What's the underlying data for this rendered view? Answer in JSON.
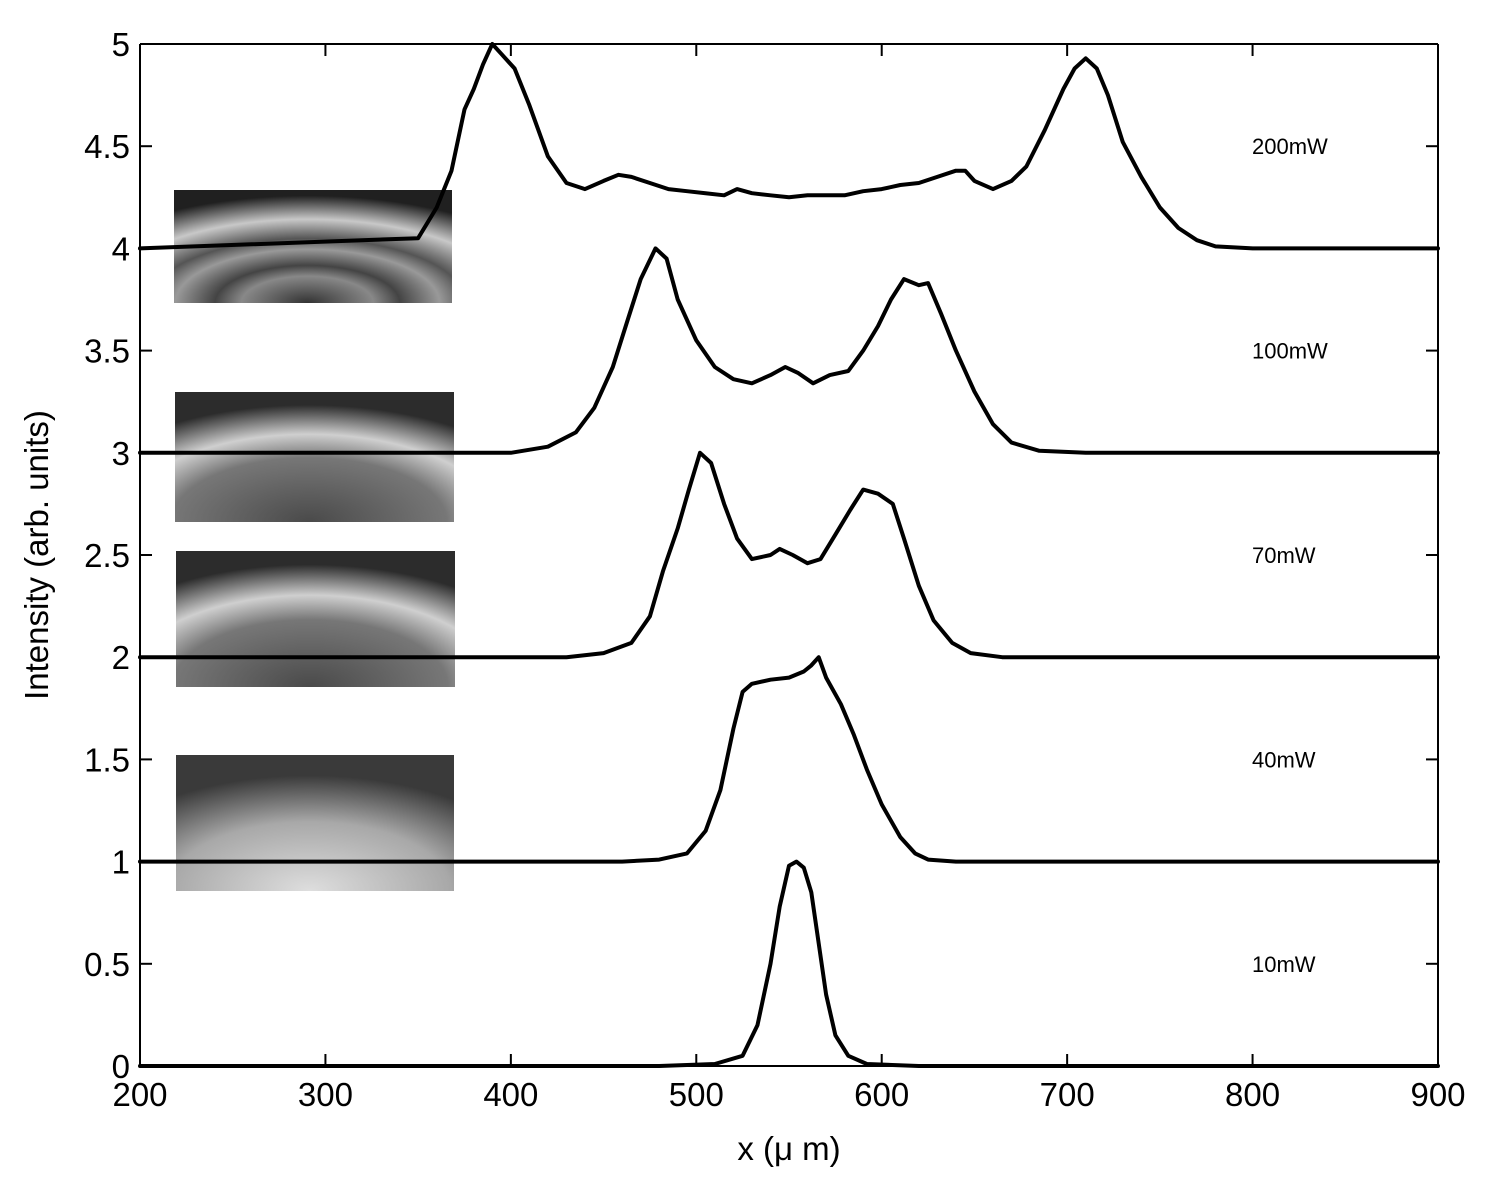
{
  "chart_data": {
    "type": "line",
    "title": "",
    "xlabel": "x (μ m)",
    "ylabel": "Intensity (arb. units)",
    "xlim": [
      200,
      900
    ],
    "ylim": [
      0,
      5
    ],
    "xticks": [
      200,
      300,
      400,
      500,
      600,
      700,
      800,
      900
    ],
    "yticks": [
      0,
      0.5,
      1,
      1.5,
      2,
      2.5,
      3,
      3.5,
      4,
      4.5,
      5
    ],
    "ytick_labels": [
      "0",
      "0.5",
      "1",
      "1.5",
      "2",
      "2.5",
      "3",
      "3.5",
      "4",
      "4.5",
      "5"
    ],
    "grid": false,
    "line_color": "#000000",
    "series": [
      {
        "name": "10mW",
        "points": [
          [
            200,
            0
          ],
          [
            480,
            0
          ],
          [
            510,
            0.01
          ],
          [
            525,
            0.05
          ],
          [
            533,
            0.2
          ],
          [
            540,
            0.5
          ],
          [
            545,
            0.78
          ],
          [
            550,
            0.98
          ],
          [
            554,
            1.0
          ],
          [
            558,
            0.97
          ],
          [
            562,
            0.85
          ],
          [
            566,
            0.6
          ],
          [
            570,
            0.35
          ],
          [
            575,
            0.15
          ],
          [
            582,
            0.05
          ],
          [
            592,
            0.01
          ],
          [
            620,
            0
          ],
          [
            900,
            0
          ]
        ]
      },
      {
        "name": "40mW",
        "points": [
          [
            200,
            1
          ],
          [
            460,
            1.0
          ],
          [
            480,
            1.01
          ],
          [
            495,
            1.04
          ],
          [
            505,
            1.15
          ],
          [
            513,
            1.35
          ],
          [
            520,
            1.65
          ],
          [
            525,
            1.83
          ],
          [
            530,
            1.87
          ],
          [
            540,
            1.89
          ],
          [
            550,
            1.9
          ],
          [
            558,
            1.93
          ],
          [
            562,
            1.96
          ],
          [
            566,
            2.0
          ],
          [
            570,
            1.9
          ],
          [
            578,
            1.77
          ],
          [
            585,
            1.62
          ],
          [
            592,
            1.45
          ],
          [
            600,
            1.28
          ],
          [
            610,
            1.12
          ],
          [
            618,
            1.04
          ],
          [
            625,
            1.01
          ],
          [
            640,
            1.0
          ],
          [
            900,
            1.0
          ]
        ]
      },
      {
        "name": "70mW",
        "points": [
          [
            200,
            2
          ],
          [
            430,
            2.0
          ],
          [
            450,
            2.02
          ],
          [
            465,
            2.07
          ],
          [
            475,
            2.2
          ],
          [
            482,
            2.42
          ],
          [
            490,
            2.63
          ],
          [
            496,
            2.82
          ],
          [
            502,
            3.0
          ],
          [
            508,
            2.95
          ],
          [
            515,
            2.75
          ],
          [
            522,
            2.58
          ],
          [
            530,
            2.48
          ],
          [
            540,
            2.5
          ],
          [
            545,
            2.53
          ],
          [
            552,
            2.5
          ],
          [
            560,
            2.46
          ],
          [
            567,
            2.48
          ],
          [
            575,
            2.6
          ],
          [
            583,
            2.72
          ],
          [
            590,
            2.82
          ],
          [
            598,
            2.8
          ],
          [
            606,
            2.75
          ],
          [
            612,
            2.58
          ],
          [
            620,
            2.35
          ],
          [
            628,
            2.18
          ],
          [
            638,
            2.07
          ],
          [
            648,
            2.02
          ],
          [
            665,
            2.0
          ],
          [
            900,
            2.0
          ]
        ]
      },
      {
        "name": "100mW",
        "points": [
          [
            200,
            3
          ],
          [
            400,
            3.0
          ],
          [
            420,
            3.03
          ],
          [
            435,
            3.1
          ],
          [
            445,
            3.22
          ],
          [
            455,
            3.42
          ],
          [
            463,
            3.65
          ],
          [
            470,
            3.85
          ],
          [
            478,
            4.0
          ],
          [
            484,
            3.95
          ],
          [
            490,
            3.75
          ],
          [
            500,
            3.55
          ],
          [
            510,
            3.42
          ],
          [
            520,
            3.36
          ],
          [
            530,
            3.34
          ],
          [
            540,
            3.38
          ],
          [
            548,
            3.42
          ],
          [
            555,
            3.39
          ],
          [
            563,
            3.34
          ],
          [
            572,
            3.38
          ],
          [
            582,
            3.4
          ],
          [
            590,
            3.5
          ],
          [
            598,
            3.62
          ],
          [
            605,
            3.75
          ],
          [
            612,
            3.85
          ],
          [
            620,
            3.82
          ],
          [
            625,
            3.83
          ],
          [
            632,
            3.68
          ],
          [
            640,
            3.5
          ],
          [
            650,
            3.3
          ],
          [
            660,
            3.14
          ],
          [
            670,
            3.05
          ],
          [
            685,
            3.01
          ],
          [
            710,
            3.0
          ],
          [
            900,
            3.0
          ]
        ]
      },
      {
        "name": "200mW",
        "points": [
          [
            200,
            4
          ],
          [
            350,
            4.05
          ],
          [
            360,
            4.2
          ],
          [
            368,
            4.38
          ],
          [
            375,
            4.68
          ],
          [
            380,
            4.78
          ],
          [
            385,
            4.9
          ],
          [
            390,
            5.0
          ],
          [
            395,
            4.95
          ],
          [
            402,
            4.88
          ],
          [
            410,
            4.7
          ],
          [
            420,
            4.45
          ],
          [
            430,
            4.32
          ],
          [
            440,
            4.29
          ],
          [
            450,
            4.33
          ],
          [
            458,
            4.36
          ],
          [
            465,
            4.35
          ],
          [
            475,
            4.32
          ],
          [
            485,
            4.29
          ],
          [
            495,
            4.28
          ],
          [
            505,
            4.27
          ],
          [
            515,
            4.26
          ],
          [
            522,
            4.29
          ],
          [
            530,
            4.27
          ],
          [
            540,
            4.26
          ],
          [
            550,
            4.25
          ],
          [
            560,
            4.26
          ],
          [
            570,
            4.26
          ],
          [
            580,
            4.26
          ],
          [
            590,
            4.28
          ],
          [
            600,
            4.29
          ],
          [
            610,
            4.31
          ],
          [
            620,
            4.32
          ],
          [
            630,
            4.35
          ],
          [
            640,
            4.38
          ],
          [
            645,
            4.38
          ],
          [
            650,
            4.33
          ],
          [
            660,
            4.29
          ],
          [
            670,
            4.33
          ],
          [
            678,
            4.4
          ],
          [
            688,
            4.58
          ],
          [
            698,
            4.78
          ],
          [
            704,
            4.88
          ],
          [
            710,
            4.93
          ],
          [
            716,
            4.88
          ],
          [
            722,
            4.75
          ],
          [
            730,
            4.52
          ],
          [
            740,
            4.35
          ],
          [
            750,
            4.2
          ],
          [
            760,
            4.1
          ],
          [
            770,
            4.04
          ],
          [
            780,
            4.01
          ],
          [
            800,
            4.0
          ],
          [
            900,
            4.0
          ]
        ]
      }
    ],
    "annotations": [
      {
        "text": "200mW",
        "series": "200mW"
      },
      {
        "text": "100mW",
        "series": "100mW"
      },
      {
        "text": "70mW",
        "series": "70mW"
      },
      {
        "text": "40mW",
        "series": "40mW"
      },
      {
        "text": "10mW",
        "series": "10mW"
      }
    ],
    "insets": [
      {
        "series": "200mW",
        "kind": "intensity-image",
        "rings": 4
      },
      {
        "series": "100mW",
        "kind": "intensity-image",
        "rings": 2
      },
      {
        "series": "70mW",
        "kind": "intensity-image",
        "rings": 2
      },
      {
        "series": "40mW",
        "kind": "intensity-image",
        "rings": 0
      }
    ]
  }
}
